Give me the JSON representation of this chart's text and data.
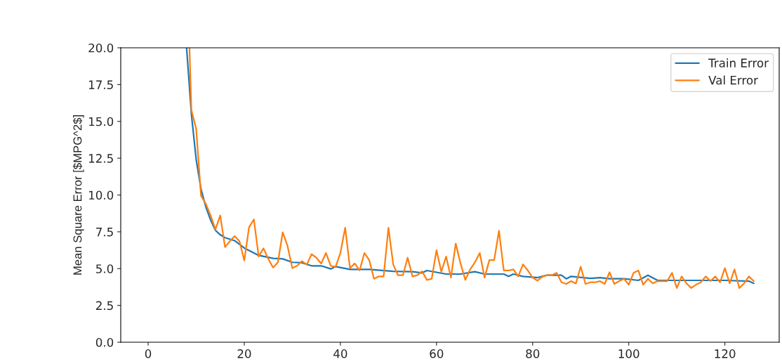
{
  "chart_data": {
    "type": "line",
    "ylabel": "Mean Square Error [$MPG^2$]",
    "xlim": [
      -5.7,
      131.3
    ],
    "ylim": [
      0,
      20
    ],
    "xticks": [
      0,
      20,
      40,
      60,
      80,
      100,
      120
    ],
    "yticks": [
      {
        "value": 0,
        "label": "0.0"
      },
      {
        "value": 2.5,
        "label": "2.5"
      },
      {
        "value": 5,
        "label": "5.0"
      },
      {
        "value": 7.5,
        "label": "7.5"
      },
      {
        "value": 10,
        "label": "10.0"
      },
      {
        "value": 12.5,
        "label": "12.5"
      },
      {
        "value": 15,
        "label": "15.0"
      },
      {
        "value": 17.5,
        "label": "17.5"
      },
      {
        "value": 20,
        "label": "20.0"
      }
    ],
    "grid": false,
    "legend": "top right",
    "marker": "none",
    "line_style": "solid",
    "series": [
      {
        "name": "Train Error",
        "color": "#1f77b4",
        "x": [
          8,
          9,
          10,
          11,
          12,
          13,
          14,
          15,
          16,
          18,
          20,
          23,
          26,
          28,
          30,
          32,
          34,
          36,
          38,
          39,
          42,
          46,
          51,
          55,
          57,
          58,
          62,
          65,
          68,
          70,
          74,
          75,
          76,
          78,
          81,
          83,
          86,
          87,
          88,
          92,
          94,
          96,
          99,
          102,
          104,
          106,
          110,
          115,
          120,
          125,
          126
        ],
        "values": [
          20,
          15.5,
          12.4,
          10.4,
          9.2,
          8.3,
          7.6,
          7.3,
          7.1,
          6.9,
          6.4,
          5.9,
          5.7,
          5.66,
          5.43,
          5.4,
          5.19,
          5.19,
          4.98,
          5.14,
          4.95,
          4.95,
          4.82,
          4.79,
          4.71,
          4.87,
          4.63,
          4.63,
          4.79,
          4.63,
          4.63,
          4.47,
          4.63,
          4.47,
          4.39,
          4.55,
          4.55,
          4.31,
          4.47,
          4.34,
          4.39,
          4.31,
          4.31,
          4.2,
          4.55,
          4.2,
          4.2,
          4.2,
          4.2,
          4.15,
          4.0
        ]
      },
      {
        "name": "Val Error",
        "color": "#ff7f0e",
        "x": [
          8.6,
          9,
          10,
          11,
          12,
          13,
          14,
          15,
          16,
          17,
          18,
          19,
          20,
          21,
          22,
          23,
          24,
          25,
          26,
          27,
          28,
          29,
          30,
          31,
          32,
          33,
          34,
          35,
          36,
          37,
          38,
          39,
          40,
          41,
          42,
          43,
          44,
          45,
          46,
          47,
          48,
          49,
          50,
          51,
          52,
          53,
          54,
          55,
          56,
          57,
          58,
          59,
          60,
          61,
          62,
          63,
          64,
          65,
          66,
          67,
          68,
          69,
          70,
          71,
          72,
          73,
          74,
          75,
          76,
          77,
          78,
          79,
          80,
          81,
          82,
          83,
          84,
          85,
          86,
          87,
          88,
          89,
          90,
          91,
          92,
          93,
          94,
          95,
          96,
          97,
          98,
          99,
          100,
          101,
          102,
          103,
          104,
          105,
          106,
          107,
          108,
          109,
          110,
          111,
          112,
          113,
          114,
          115,
          116,
          117,
          118,
          119,
          120,
          121,
          122,
          123,
          124,
          125,
          126
        ],
        "values": [
          20,
          15.77,
          14.49,
          9.96,
          9.4,
          8.61,
          7.65,
          8.61,
          6.46,
          6.86,
          7.21,
          6.86,
          5.55,
          7.81,
          8.34,
          5.82,
          6.38,
          5.66,
          5.07,
          5.43,
          7.46,
          6.54,
          5.03,
          5.19,
          5.51,
          5.27,
          5.98,
          5.74,
          5.35,
          6.06,
          5.19,
          5.11,
          6.06,
          7.78,
          5.03,
          5.35,
          4.88,
          6.06,
          5.58,
          4.31,
          4.47,
          4.47,
          7.78,
          5.27,
          4.55,
          4.55,
          5.74,
          4.47,
          4.55,
          4.82,
          4.23,
          4.31,
          6.25,
          4.79,
          5.82,
          4.39,
          6.7,
          5.35,
          4.23,
          4.95,
          5.43,
          6.06,
          4.39,
          5.58,
          5.58,
          7.57,
          4.87,
          4.87,
          4.95,
          4.47,
          5.29,
          4.87,
          4.39,
          4.18,
          4.44,
          4.55,
          4.55,
          4.71,
          4.07,
          3.96,
          4.15,
          3.99,
          5.13,
          3.96,
          4.07,
          4.07,
          4.15,
          3.96,
          4.75,
          3.96,
          4.15,
          4.31,
          3.91,
          4.71,
          4.87,
          3.91,
          4.31,
          4.0,
          4.15,
          4.15,
          4.15,
          4.71,
          3.68,
          4.47,
          4.0,
          3.68,
          3.91,
          4.07,
          4.47,
          4.15,
          4.47,
          4.07,
          5.03,
          4.0,
          4.95,
          3.68,
          4.0,
          4.47,
          4.15
        ]
      }
    ]
  }
}
